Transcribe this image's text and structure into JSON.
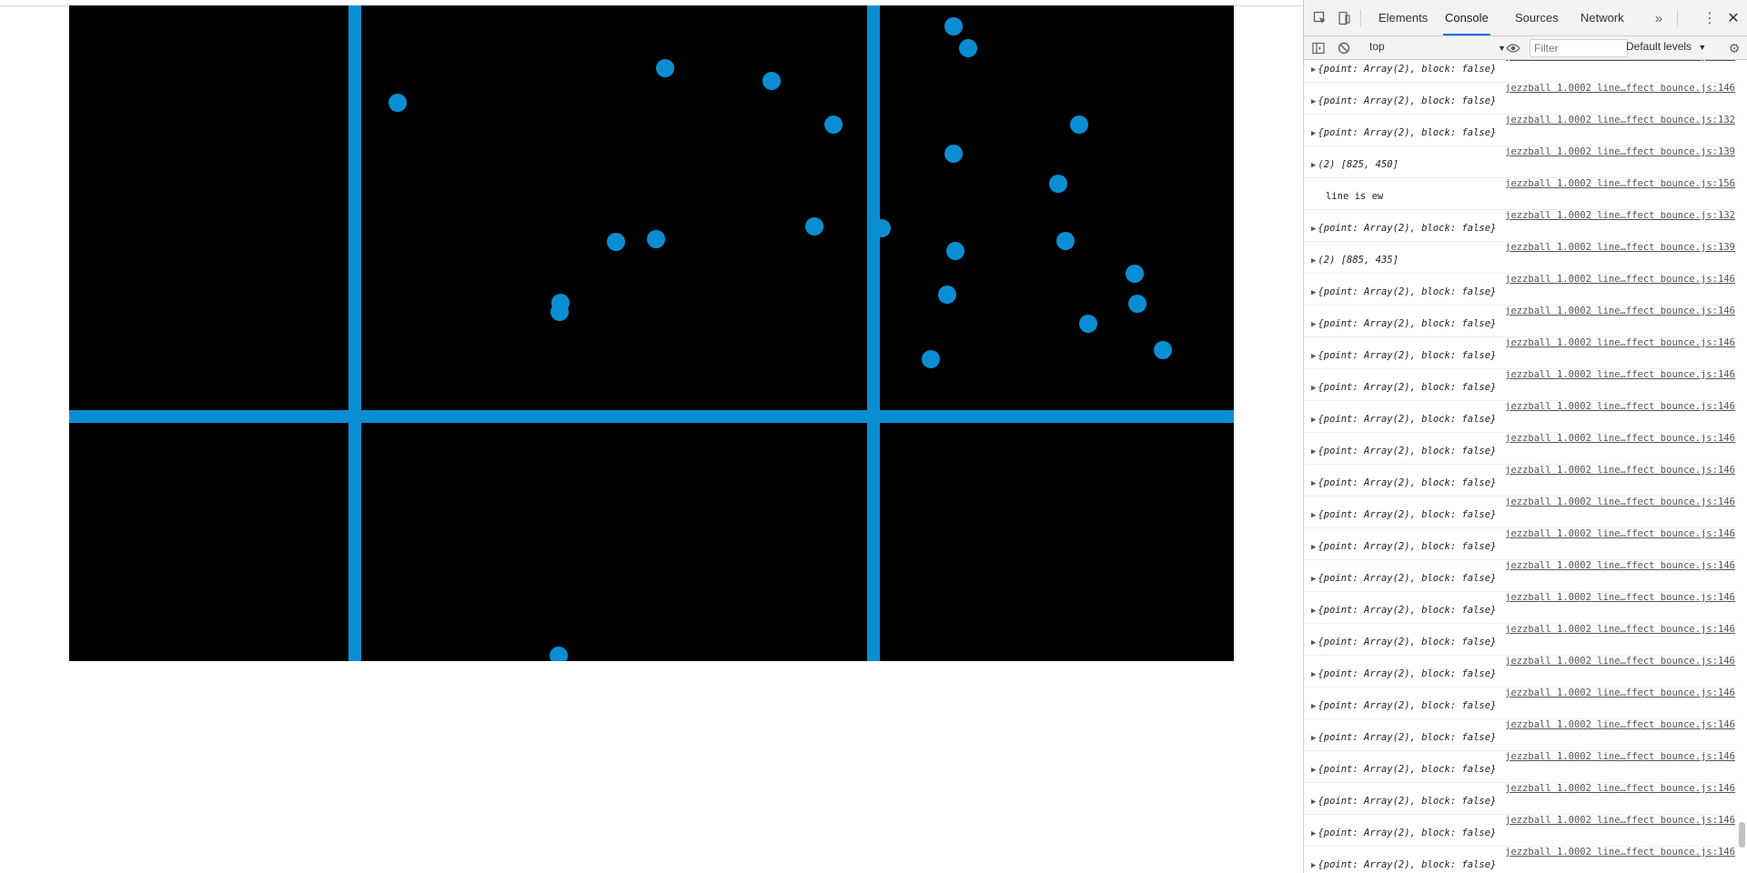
{
  "devtools": {
    "tabs": [
      "Elements",
      "Console",
      "Sources",
      "Network"
    ],
    "active_tab": "Console",
    "more_tabs_icon": "double-chevron-icon",
    "context": "top",
    "filter_placeholder": "Filter",
    "levels": "Default levels"
  },
  "console": {
    "messages": [
      {
        "src": "jezzball 1.0002 line…ffect bounce.js:146",
        "text": "{point: Array(2), block: false}",
        "kind": "obj"
      },
      {
        "src": "jezzball 1.0002 line…ffect bounce.js:146",
        "text": "{point: Array(2), block: false}",
        "kind": "obj"
      },
      {
        "src": "jezzball 1.0002 line…ffect bounce.js:132",
        "text": "{point: Array(2), block: false}",
        "kind": "obj"
      },
      {
        "src": "jezzball 1.0002 line…ffect bounce.js:139",
        "text": "(2) [825, 450]",
        "kind": "arr"
      },
      {
        "src": "jezzball 1.0002 line…ffect bounce.js:156",
        "text": "line is ew",
        "kind": "plain"
      },
      {
        "src": "jezzball 1.0002 line…ffect bounce.js:132",
        "text": "{point: Array(2), block: false}",
        "kind": "obj"
      },
      {
        "src": "jezzball 1.0002 line…ffect bounce.js:139",
        "text": "(2) [885, 435]",
        "kind": "arr"
      },
      {
        "src": "jezzball 1.0002 line…ffect bounce.js:146",
        "text": "{point: Array(2), block: false}",
        "kind": "obj"
      },
      {
        "src": "jezzball 1.0002 line…ffect bounce.js:146",
        "text": "{point: Array(2), block: false}",
        "kind": "obj"
      },
      {
        "src": "jezzball 1.0002 line…ffect bounce.js:146",
        "text": "{point: Array(2), block: false}",
        "kind": "obj"
      },
      {
        "src": "jezzball 1.0002 line…ffect bounce.js:146",
        "text": "{point: Array(2), block: false}",
        "kind": "obj"
      },
      {
        "src": "jezzball 1.0002 line…ffect bounce.js:146",
        "text": "{point: Array(2), block: false}",
        "kind": "obj"
      },
      {
        "src": "jezzball 1.0002 line…ffect bounce.js:146",
        "text": "{point: Array(2), block: false}",
        "kind": "obj"
      },
      {
        "src": "jezzball 1.0002 line…ffect bounce.js:146",
        "text": "{point: Array(2), block: false}",
        "kind": "obj"
      },
      {
        "src": "jezzball 1.0002 line…ffect bounce.js:146",
        "text": "{point: Array(2), block: false}",
        "kind": "obj"
      },
      {
        "src": "jezzball 1.0002 line…ffect bounce.js:146",
        "text": "{point: Array(2), block: false}",
        "kind": "obj"
      },
      {
        "src": "jezzball 1.0002 line…ffect bounce.js:146",
        "text": "{point: Array(2), block: false}",
        "kind": "obj"
      },
      {
        "src": "jezzball 1.0002 line…ffect bounce.js:146",
        "text": "{point: Array(2), block: false}",
        "kind": "obj"
      },
      {
        "src": "jezzball 1.0002 line…ffect bounce.js:146",
        "text": "{point: Array(2), block: false}",
        "kind": "obj"
      },
      {
        "src": "jezzball 1.0002 line…ffect bounce.js:146",
        "text": "{point: Array(2), block: false}",
        "kind": "obj"
      },
      {
        "src": "jezzball 1.0002 line…ffect bounce.js:146",
        "text": "{point: Array(2), block: false}",
        "kind": "obj"
      },
      {
        "src": "jezzball 1.0002 line…ffect bounce.js:146",
        "text": "{point: Array(2), block: false}",
        "kind": "obj"
      },
      {
        "src": "jezzball 1.0002 line…ffect bounce.js:146",
        "text": "{point: Array(2), block: false}",
        "kind": "obj"
      },
      {
        "src": "jezzball 1.0002 line…ffect bounce.js:146",
        "text": "{point: Array(2), block: false}",
        "kind": "obj"
      },
      {
        "src": "jezzball 1.0002 line…ffect bounce.js:146",
        "text": "{point: Array(2), block: false}",
        "kind": "obj"
      },
      {
        "src": "jezzball 1.0002 line…ffect bounce.js:146",
        "text": "{point: Array(2), block: false}",
        "kind": "obj"
      }
    ],
    "prompt_symbol": "›"
  },
  "game": {
    "background": "#000000",
    "ball_color": "#0a8ed3",
    "ball_count": 25
  }
}
